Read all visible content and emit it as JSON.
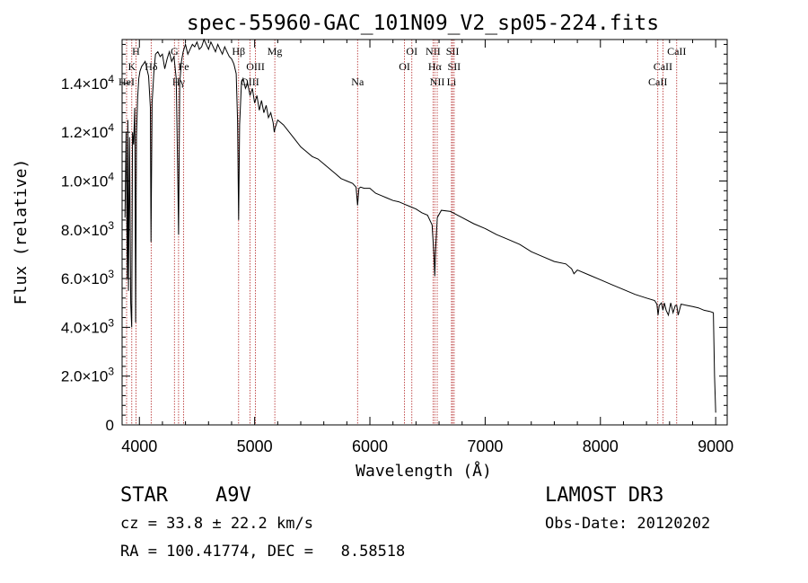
{
  "chart_data": {
    "type": "line",
    "title": "spec-55960-GAC_101N09_V2_sp05-224.fits",
    "xlabel": "Wavelength (Å)",
    "ylabel": "Flux (relative)",
    "xlim": [
      3850,
      9100
    ],
    "ylim": [
      0,
      15800
    ],
    "x_ticks": [
      4000,
      5000,
      6000,
      7000,
      8000,
      9000
    ],
    "x_tick_labels": [
      "4000",
      "5000",
      "6000",
      "7000",
      "8000",
      "9000"
    ],
    "y_ticks": [
      0,
      2000,
      4000,
      6000,
      8000,
      10000,
      12000,
      14000
    ],
    "y_tick_labels": [
      {
        "mant": "0",
        "exp": ""
      },
      {
        "mant": "2.0×10",
        "exp": "3"
      },
      {
        "mant": "4.0×10",
        "exp": "3"
      },
      {
        "mant": "6.0×10",
        "exp": "3"
      },
      {
        "mant": "8.0×10",
        "exp": "3"
      },
      {
        "mant": "1.0×10",
        "exp": "4"
      },
      {
        "mant": "1.2×10",
        "exp": "4"
      },
      {
        "mant": "1.4×10",
        "exp": "4"
      }
    ],
    "series": [
      {
        "name": "flux",
        "x": [
          3875,
          3885,
          3895,
          3900,
          3905,
          3915,
          3925,
          3933,
          3940,
          3950,
          3960,
          3968,
          3975,
          3985,
          3995,
          4005,
          4020,
          4035,
          4050,
          4065,
          4080,
          4095,
          4101,
          4110,
          4125,
          4140,
          4160,
          4180,
          4200,
          4220,
          4240,
          4260,
          4280,
          4300,
          4320,
          4335,
          4340,
          4350,
          4365,
          4380,
          4400,
          4420,
          4440,
          4460,
          4480,
          4500,
          4520,
          4540,
          4560,
          4580,
          4600,
          4620,
          4640,
          4660,
          4680,
          4700,
          4720,
          4740,
          4760,
          4780,
          4800,
          4820,
          4840,
          4852,
          4861,
          4870,
          4885,
          4900,
          4920,
          4940,
          4960,
          4980,
          5000,
          5020,
          5040,
          5060,
          5080,
          5100,
          5120,
          5140,
          5160,
          5170,
          5180,
          5200,
          5250,
          5300,
          5350,
          5400,
          5450,
          5500,
          5550,
          5600,
          5650,
          5700,
          5750,
          5800,
          5850,
          5880,
          5893,
          5905,
          5920,
          5950,
          6000,
          6050,
          6100,
          6150,
          6200,
          6250,
          6300,
          6350,
          6400,
          6450,
          6500,
          6540,
          6555,
          6563,
          6570,
          6585,
          6620,
          6700,
          6800,
          6900,
          7000,
          7100,
          7200,
          7300,
          7400,
          7500,
          7600,
          7700,
          7750,
          7770,
          7800,
          7900,
          8000,
          8100,
          8200,
          8300,
          8400,
          8470,
          8490,
          8500,
          8510,
          8530,
          8542,
          8555,
          8570,
          8590,
          8610,
          8630,
          8650,
          8662,
          8675,
          8700,
          8750,
          8800,
          8850,
          8900,
          8950,
          8980,
          8990,
          9000
        ],
        "y": [
          8500,
          12000,
          6000,
          12500,
          5500,
          11800,
          5000,
          4000,
          12000,
          11500,
          13000,
          4200,
          11800,
          13400,
          14200,
          14500,
          14700,
          14800,
          14900,
          14600,
          14300,
          13000,
          7500,
          13200,
          14400,
          15200,
          15300,
          15100,
          15200,
          14600,
          15000,
          15300,
          14900,
          15100,
          14200,
          9500,
          7800,
          14000,
          14900,
          15300,
          15600,
          15200,
          15400,
          15600,
          15500,
          15700,
          15400,
          15500,
          15800,
          15600,
          15400,
          15700,
          15500,
          15300,
          15600,
          15400,
          15200,
          15500,
          15300,
          15100,
          15000,
          14800,
          14400,
          12500,
          8400,
          12300,
          14000,
          14200,
          13800,
          14000,
          13500,
          13800,
          13200,
          13500,
          12900,
          13300,
          12800,
          13100,
          12600,
          12800,
          12400,
          12000,
          12200,
          12500,
          12300,
          12000,
          11700,
          11400,
          11200,
          11000,
          10900,
          10700,
          10500,
          10300,
          10100,
          10000,
          9900,
          9750,
          9000,
          9700,
          9750,
          9700,
          9700,
          9500,
          9400,
          9300,
          9200,
          9150,
          9050,
          8950,
          8850,
          8700,
          8600,
          8200,
          7000,
          6100,
          7200,
          8500,
          8800,
          8750,
          8500,
          8250,
          8050,
          7800,
          7600,
          7400,
          7100,
          6900,
          6700,
          6600,
          6400,
          6200,
          6350,
          6150,
          5950,
          5750,
          5550,
          5350,
          5200,
          5100,
          4950,
          4500,
          4900,
          5000,
          4700,
          5000,
          4700,
          4500,
          5000,
          4600,
          4900,
          4900,
          4500,
          4950,
          4900,
          4850,
          4800,
          4700,
          4650,
          4600,
          2000,
          500
        ]
      }
    ],
    "line_markers": [
      {
        "label": "H",
        "x": 3970,
        "row": 1
      },
      {
        "label": "K",
        "x": 3934,
        "row": 2
      },
      {
        "label": "HeI",
        "x": 3889,
        "row": 3
      },
      {
        "label": "Hδ",
        "x": 4102,
        "row": 2
      },
      {
        "label": "Hγ",
        "x": 4340,
        "row": 3
      },
      {
        "label": "G",
        "x": 4304,
        "row": 1
      },
      {
        "label": "Fe",
        "x": 4384,
        "row": 2
      },
      {
        "label": "Hβ",
        "x": 4861,
        "row": 1
      },
      {
        "label": "OIII",
        "x": 5007,
        "row": 2
      },
      {
        "label": "OIII",
        "x": 4959,
        "row": 3
      },
      {
        "label": "Mg",
        "x": 5175,
        "row": 1
      },
      {
        "label": "Na",
        "x": 5893,
        "row": 3
      },
      {
        "label": "OI",
        "x": 6364,
        "row": 1
      },
      {
        "label": "OI",
        "x": 6300,
        "row": 2
      },
      {
        "label": "NII",
        "x": 6548,
        "row": 1
      },
      {
        "label": "SII",
        "x": 6717,
        "row": 1
      },
      {
        "label": "Hα",
        "x": 6563,
        "row": 2
      },
      {
        "label": "SII",
        "x": 6731,
        "row": 2
      },
      {
        "label": "NII",
        "x": 6584,
        "row": 3
      },
      {
        "label": "Li",
        "x": 6708,
        "row": 3
      },
      {
        "label": "CaII",
        "x": 8662,
        "row": 1
      },
      {
        "label": "CaII",
        "x": 8542,
        "row": 2
      },
      {
        "label": "CaII",
        "x": 8498,
        "row": 3
      }
    ]
  },
  "info": {
    "object_type": "STAR",
    "subclass": "A9V",
    "survey": "LAMOST DR3",
    "cz_line": "cz = 33.8 ± 22.2 km/s",
    "obs_date_line": "Obs-Date: 20120202",
    "coords_line": "RA = 100.41774, DEC =   8.58518"
  },
  "colors": {
    "axis": "#000000",
    "spectrum": "#000000",
    "marker_line": "#b22222"
  }
}
